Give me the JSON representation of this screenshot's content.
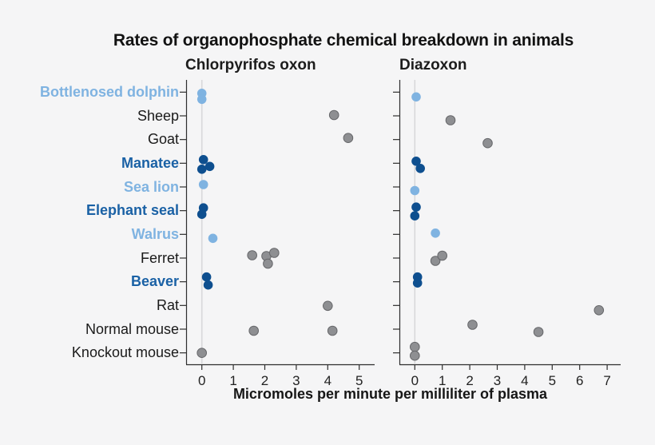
{
  "page": {
    "background": "#f5f5f6"
  },
  "chart_data": {
    "type": "scatter",
    "title": "Rates of organophosphate chemical breakdown in animals",
    "xlabel": "Micromoles per minute per milliliter of plasma",
    "grid": "zero-line only",
    "legend": "none",
    "colors": {
      "background": "#f5f5f6",
      "highlight_light": "#7fb3e1",
      "highlight_dark_label": "#1a61a5",
      "highlight_dark_dot": "#0e4f8f",
      "default_label": "#1a1a1a",
      "gray_dot": "#8e8f92",
      "gray_dot_stroke": "#66676a",
      "axis": "#2e2e2e",
      "tick_label": "#222222",
      "zero_gridline": "#d8d8da"
    },
    "categories": [
      {
        "label": "Bottlenosed dolphin",
        "group": "light"
      },
      {
        "label": "Sheep",
        "group": "plain"
      },
      {
        "label": "Goat",
        "group": "plain"
      },
      {
        "label": "Manatee",
        "group": "dark"
      },
      {
        "label": "Sea lion",
        "group": "light"
      },
      {
        "label": "Elephant seal",
        "group": "dark"
      },
      {
        "label": "Walrus",
        "group": "light"
      },
      {
        "label": "Ferret",
        "group": "plain"
      },
      {
        "label": "Beaver",
        "group": "dark"
      },
      {
        "label": "Rat",
        "group": "plain"
      },
      {
        "label": "Normal mouse",
        "group": "plain"
      },
      {
        "label": "Knockout mouse",
        "group": "plain"
      }
    ],
    "panels": [
      {
        "title": "Chlorpyrifos oxon",
        "xlim": [
          0,
          5
        ],
        "xticks": [
          0,
          1,
          2,
          3,
          4,
          5
        ],
        "points": [
          {
            "i": 0,
            "x": 0,
            "dy": 2
          },
          {
            "i": 0,
            "x": 0,
            "dy": 9.5
          },
          {
            "i": 1,
            "x": 4.2,
            "dy": -0.5
          },
          {
            "i": 2,
            "x": 4.65,
            "dy": -1.5
          },
          {
            "i": 3,
            "x": 0.05,
            "dy": -4
          },
          {
            "i": 3,
            "x": 0,
            "dy": 8
          },
          {
            "i": 3,
            "x": 0.25,
            "dy": 4.5
          },
          {
            "i": 4,
            "x": 0.05,
            "dy": -2.5
          },
          {
            "i": 5,
            "x": 0.05,
            "dy": -3
          },
          {
            "i": 5,
            "x": 0,
            "dy": 5
          },
          {
            "i": 6,
            "x": 0.35,
            "dy": 5.5
          },
          {
            "i": 7,
            "x": 1.6,
            "dy": -3
          },
          {
            "i": 7,
            "x": 2.05,
            "dy": -2
          },
          {
            "i": 7,
            "x": 2.1,
            "dy": 7.5
          },
          {
            "i": 7,
            "x": 2.3,
            "dy": -6
          },
          {
            "i": 8,
            "x": 0.15,
            "dy": -5.5
          },
          {
            "i": 8,
            "x": 0.2,
            "dy": 4.5
          },
          {
            "i": 9,
            "x": 4,
            "dy": 1
          },
          {
            "i": 10,
            "x": 1.65,
            "dy": 2.5
          },
          {
            "i": 10,
            "x": 4.15,
            "dy": 2.5
          },
          {
            "i": 11,
            "x": 0,
            "dy": 0.5
          }
        ]
      },
      {
        "title": "Diazoxon",
        "xlim": [
          0,
          7
        ],
        "xticks": [
          0,
          1,
          2,
          3,
          4,
          5,
          6,
          7
        ],
        "points": [
          {
            "i": 0,
            "x": 0.05,
            "dy": 6.5
          },
          {
            "i": 1,
            "x": 1.3,
            "dy": 6
          },
          {
            "i": 2,
            "x": 2.65,
            "dy": 5
          },
          {
            "i": 3,
            "x": 0.05,
            "dy": -2
          },
          {
            "i": 3,
            "x": 0.2,
            "dy": 7
          },
          {
            "i": 4,
            "x": 0,
            "dy": 5
          },
          {
            "i": 5,
            "x": 0.05,
            "dy": -4
          },
          {
            "i": 5,
            "x": 0,
            "dy": 7
          },
          {
            "i": 6,
            "x": 0.75,
            "dy": -1
          },
          {
            "i": 7,
            "x": 0.75,
            "dy": 4
          },
          {
            "i": 7,
            "x": 1,
            "dy": -2.5
          },
          {
            "i": 8,
            "x": 0.1,
            "dy": -5.5
          },
          {
            "i": 8,
            "x": 0.1,
            "dy": 2
          },
          {
            "i": 9,
            "x": 6.7,
            "dy": 6.5
          },
          {
            "i": 10,
            "x": 2.1,
            "dy": -5
          },
          {
            "i": 10,
            "x": 4.5,
            "dy": 4
          },
          {
            "i": 11,
            "x": 0,
            "dy": -7
          },
          {
            "i": 11,
            "x": 0,
            "dy": 4
          }
        ]
      }
    ]
  }
}
